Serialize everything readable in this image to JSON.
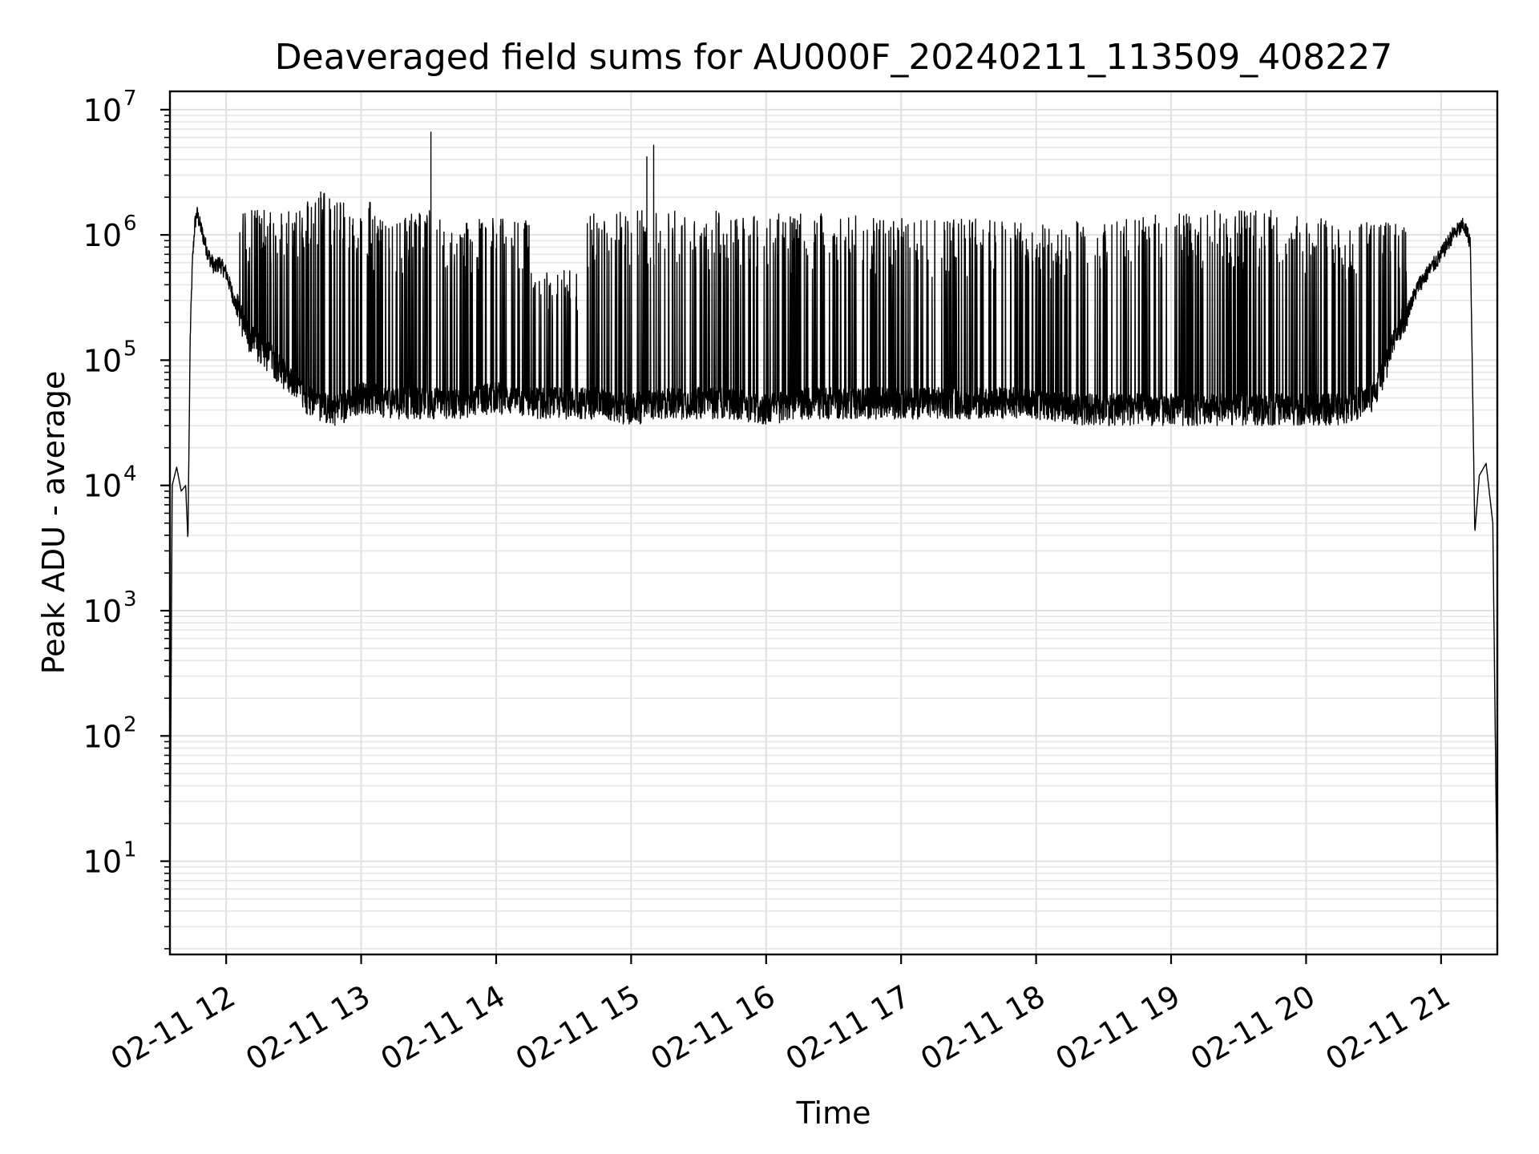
{
  "chart_data": {
    "type": "line",
    "title": "Deaveraged field sums for AU000F_20240211_113509_408227",
    "xlabel": "Time",
    "ylabel": "Peak ADU - average",
    "yscale": "log",
    "ylim": [
      1.8,
      14000000
    ],
    "xlim": [
      "2024-02-11 11:35",
      "2024-02-11 21:25"
    ],
    "grid": true,
    "x_ticks": [
      {
        "label": "02-11 12",
        "value": "2024-02-11 12:00"
      },
      {
        "label": "02-11 13",
        "value": "2024-02-11 13:00"
      },
      {
        "label": "02-11 14",
        "value": "2024-02-11 14:00"
      },
      {
        "label": "02-11 15",
        "value": "2024-02-11 15:00"
      },
      {
        "label": "02-11 16",
        "value": "2024-02-11 16:00"
      },
      {
        "label": "02-11 17",
        "value": "2024-02-11 17:00"
      },
      {
        "label": "02-11 18",
        "value": "2024-02-11 18:00"
      },
      {
        "label": "02-11 19",
        "value": "2024-02-11 19:00"
      },
      {
        "label": "02-11 20",
        "value": "2024-02-11 20:00"
      },
      {
        "label": "02-11 21",
        "value": "2024-02-11 21:00"
      }
    ],
    "y_ticks": [
      {
        "base": "10",
        "exp": "1",
        "value": 10
      },
      {
        "base": "10",
        "exp": "2",
        "value": 100
      },
      {
        "base": "10",
        "exp": "3",
        "value": 1000
      },
      {
        "base": "10",
        "exp": "4",
        "value": 10000
      },
      {
        "base": "10",
        "exp": "5",
        "value": 100000
      },
      {
        "base": "10",
        "exp": "6",
        "value": 1000000
      },
      {
        "base": "10",
        "exp": "7",
        "value": 10000000
      }
    ],
    "line_color": "#000000",
    "series": [
      {
        "x": [
          "2024-02-11 11:35",
          "2024-02-11 11:36",
          "2024-02-11 11:38",
          "2024-02-11 11:40",
          "2024-02-11 11:42",
          "2024-02-11 11:43",
          "2024-02-11 11:44",
          "2024-02-11 11:45",
          "2024-02-11 11:46",
          "2024-02-11 11:47",
          "2024-02-11 11:49",
          "2024-02-11 11:52",
          "2024-02-11 11:55",
          "2024-02-11 11:57",
          "2024-02-11 12:00",
          "2024-02-11 12:05",
          "2024-02-11 12:10",
          "2024-02-11 12:15",
          "2024-02-11 12:20",
          "2024-02-11 12:25",
          "2024-02-11 12:30",
          "2024-02-11 12:35",
          "2024-02-11 12:40",
          "2024-02-11 12:45",
          "2024-02-11 12:50",
          "2024-02-11 13:00",
          "2024-02-11 13:15",
          "2024-02-11 13:30",
          "2024-02-11 13:45",
          "2024-02-11 14:00",
          "2024-02-11 14:15",
          "2024-02-11 14:30",
          "2024-02-11 14:45",
          "2024-02-11 15:00",
          "2024-02-11 15:15",
          "2024-02-11 15:30",
          "2024-02-11 15:45",
          "2024-02-11 16:00",
          "2024-02-11 16:15",
          "2024-02-11 16:30",
          "2024-02-11 16:45",
          "2024-02-11 17:00",
          "2024-02-11 17:15",
          "2024-02-11 17:30",
          "2024-02-11 17:45",
          "2024-02-11 18:00",
          "2024-02-11 18:15",
          "2024-02-11 18:30",
          "2024-02-11 18:45",
          "2024-02-11 19:00",
          "2024-02-11 19:15",
          "2024-02-11 19:30",
          "2024-02-11 19:45",
          "2024-02-11 20:00",
          "2024-02-11 20:15",
          "2024-02-11 20:30",
          "2024-02-11 20:40",
          "2024-02-11 20:50",
          "2024-02-11 21:00",
          "2024-02-11 21:05",
          "2024-02-11 21:10",
          "2024-02-11 21:13",
          "2024-02-11 21:15",
          "2024-02-11 21:17",
          "2024-02-11 21:20",
          "2024-02-11 21:23",
          "2024-02-11 21:25"
        ],
        "y": [
          4,
          10000,
          14000,
          9000,
          10000,
          3600,
          150000,
          600000,
          1200000,
          1500000,
          1100000,
          700000,
          550000,
          600000,
          500000,
          250000,
          150000,
          120000,
          100000,
          80000,
          60000,
          50000,
          45000,
          40000,
          40000,
          50000,
          45000,
          45000,
          45000,
          50000,
          45000,
          45000,
          45000,
          40000,
          45000,
          45000,
          45000,
          40000,
          45000,
          45000,
          45000,
          45000,
          45000,
          45000,
          45000,
          45000,
          40000,
          40000,
          40000,
          40000,
          40000,
          40000,
          40000,
          40000,
          40000,
          50000,
          150000,
          400000,
          700000,
          1000000,
          1200000,
          900000,
          4200,
          12000,
          15000,
          5000,
          4
        ],
        "bursts": [
          {
            "x": "2024-02-11 12:10",
            "y": 1500000
          },
          {
            "x": "2024-02-11 12:20",
            "y": 1600000
          },
          {
            "x": "2024-02-11 12:30",
            "y": 1500000
          },
          {
            "x": "2024-02-11 12:42",
            "y": 2200000
          },
          {
            "x": "2024-02-11 12:55",
            "y": 1800000
          },
          {
            "x": "2024-02-11 13:15",
            "y": 1400000
          },
          {
            "x": "2024-02-11 13:30",
            "y": 1500000
          },
          {
            "x": "2024-02-11 13:31",
            "y": 6600000
          },
          {
            "x": "2024-02-11 13:45",
            "y": 1300000
          },
          {
            "x": "2024-02-11 14:00",
            "y": 1300000
          },
          {
            "x": "2024-02-11 14:30",
            "y": 500000
          },
          {
            "x": "2024-02-11 14:50",
            "y": 1500000
          },
          {
            "x": "2024-02-11 15:07",
            "y": 4200000
          },
          {
            "x": "2024-02-11 15:10",
            "y": 5200000
          },
          {
            "x": "2024-02-11 15:30",
            "y": 1500000
          },
          {
            "x": "2024-02-11 16:00",
            "y": 1400000
          },
          {
            "x": "2024-02-11 16:30",
            "y": 1400000
          },
          {
            "x": "2024-02-11 17:00",
            "y": 1300000
          },
          {
            "x": "2024-02-11 17:30",
            "y": 1300000
          },
          {
            "x": "2024-02-11 18:00",
            "y": 1200000
          },
          {
            "x": "2024-02-11 18:30",
            "y": 1300000
          },
          {
            "x": "2024-02-11 19:00",
            "y": 1400000
          },
          {
            "x": "2024-02-11 19:30",
            "y": 1500000
          },
          {
            "x": "2024-02-11 20:00",
            "y": 1400000
          },
          {
            "x": "2024-02-11 20:20",
            "y": 1200000
          }
        ]
      }
    ]
  }
}
